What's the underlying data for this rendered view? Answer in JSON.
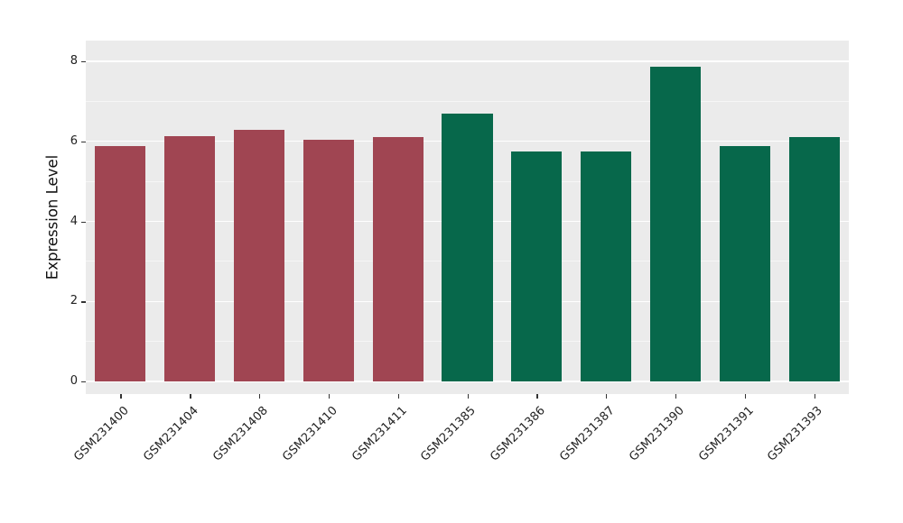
{
  "chart_data": {
    "type": "bar",
    "title": "",
    "xlabel": "",
    "ylabel": "Expression Level",
    "ylim": [
      0,
      8
    ],
    "yticks_major": [
      0,
      2,
      4,
      6,
      8
    ],
    "yticks_minor": [
      1,
      3,
      5,
      7
    ],
    "grid": "major-and-minor-white-on-gray",
    "legend_position": "none",
    "panel_bg": "#EBEBEB",
    "grid_color": "#FFFFFF",
    "categories": [
      "GSM231400",
      "GSM231404",
      "GSM231408",
      "GSM231410",
      "GSM231411",
      "GSM231385",
      "GSM231386",
      "GSM231387",
      "GSM231390",
      "GSM231391",
      "GSM231393"
    ],
    "values": [
      5.88,
      6.13,
      6.29,
      6.04,
      6.11,
      6.69,
      5.75,
      5.75,
      7.87,
      5.88,
      6.11
    ],
    "groups": [
      "group1",
      "group1",
      "group1",
      "group1",
      "group1",
      "group2",
      "group2",
      "group2",
      "group2",
      "group2",
      "group2"
    ],
    "group_colors": {
      "group1": "#A04552",
      "group2": "#07684B"
    }
  }
}
